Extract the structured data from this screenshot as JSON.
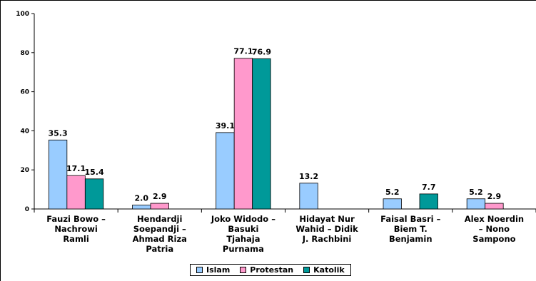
{
  "chart_data": {
    "type": "bar",
    "categories": [
      [
        "Fauzi Bowo –",
        "Nachrowi",
        "Ramli"
      ],
      [
        "Hendardji",
        "Soepandji –",
        "Ahmad Riza",
        "Patria"
      ],
      [
        "Joko Widodo –",
        "Basuki",
        "Tjahaja",
        "Purnama"
      ],
      [
        "Hidayat Nur",
        "Wahid – Didik",
        "J. Rachbini"
      ],
      [
        "Faisal Basri –",
        "Biem T.",
        "Benjamin"
      ],
      [
        "Alex Noerdin",
        "– Nono",
        "Sampono"
      ]
    ],
    "series": [
      {
        "name": "Islam",
        "color": "#99ccff",
        "values": [
          35.3,
          2.0,
          39.1,
          13.2,
          5.2,
          5.2
        ],
        "labels": [
          "35.3",
          "2.0",
          "39.1",
          "13.2",
          "5.2",
          "5.2"
        ]
      },
      {
        "name": "Protestan",
        "color": "#ff99cc",
        "values": [
          17.1,
          2.9,
          77.1,
          null,
          null,
          2.9
        ],
        "labels": [
          "17.1",
          "2.9",
          "77.1",
          "",
          "",
          "2.9"
        ]
      },
      {
        "name": "Katolik",
        "color": "#009999",
        "values": [
          15.4,
          null,
          76.9,
          null,
          7.7,
          null
        ],
        "labels": [
          "15.4",
          "",
          "76.9",
          "",
          "7.7",
          ""
        ]
      }
    ],
    "yticks": [
      0,
      20,
      40,
      60,
      80,
      100
    ],
    "ylim": [
      0,
      100
    ],
    "legend_position": "bottom",
    "grid": false
  }
}
